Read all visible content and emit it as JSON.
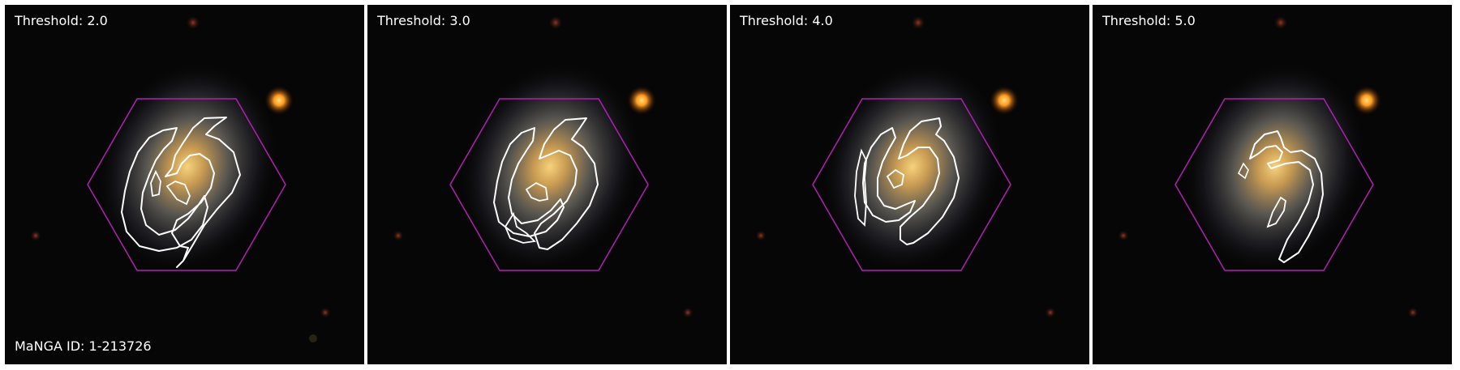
{
  "panels": [
    {
      "label": "Threshold: 2.0",
      "threshold": 2.0
    },
    {
      "label": "Threshold: 3.0",
      "threshold": 3.0
    },
    {
      "label": "Threshold: 4.0",
      "threshold": 4.0
    },
    {
      "label": "Threshold: 5.0",
      "threshold": 5.0
    }
  ],
  "manga_id": "MaNGA ID: 1-213726",
  "colors": {
    "background": "#050505",
    "hexagon": "#b020b0",
    "contour": "#ffffff",
    "galaxy_core": "#f0c060",
    "star": "#ffa020"
  }
}
